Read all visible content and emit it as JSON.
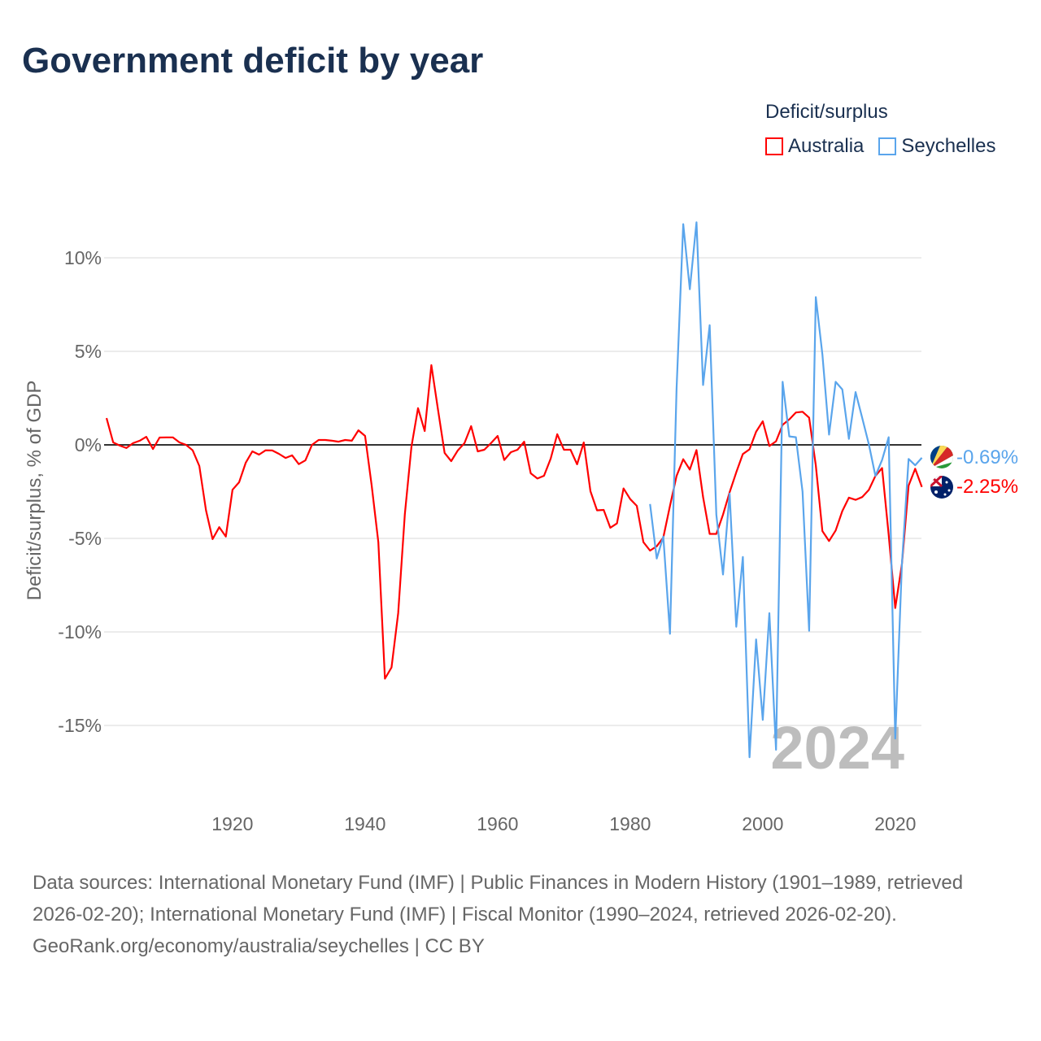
{
  "title": "Government deficit by year",
  "legend": {
    "title": "Deficit/surplus",
    "items": [
      {
        "label": "Australia",
        "color": "#ff0000"
      },
      {
        "label": "Seychelles",
        "color": "#5aa5ec"
      }
    ]
  },
  "watermark_year": "2024",
  "end_labels": {
    "Seychelles": "-0.69%",
    "Australia": "-2.25%"
  },
  "footer": {
    "sources": "Data sources: International Monetary Fund (IMF) | Public Finances in Modern History (1901–1989, retrieved 2026-02-20); International Monetary Fund (IMF) | Fiscal Monitor (1990–2024, retrieved 2026-02-20).",
    "credit": "GeoRank.org/economy/australia/seychelles | CC BY"
  },
  "chart_data": {
    "type": "line",
    "title": "Government deficit by year",
    "xlabel": "",
    "ylabel": "Deficit/surplus, % of GDP",
    "xlim": [
      1901,
      2024
    ],
    "ylim": [
      -18,
      13
    ],
    "x_ticks": [
      1920,
      1940,
      1960,
      1980,
      2000,
      2020
    ],
    "y_ticks": [
      {
        "v": 10,
        "label": "10%"
      },
      {
        "v": 5,
        "label": "5%"
      },
      {
        "v": 0,
        "label": "0%"
      },
      {
        "v": -5,
        "label": "-5%"
      },
      {
        "v": -10,
        "label": "-10%"
      },
      {
        "v": -15,
        "label": "-15%"
      }
    ],
    "grid": true,
    "legend_position": "top-right",
    "series": [
      {
        "name": "Australia",
        "color": "#ff0000",
        "start_year": 1901,
        "values": [
          1.43,
          0.13,
          -0.04,
          -0.17,
          0.09,
          0.22,
          0.43,
          -0.22,
          0.39,
          0.4,
          0.4,
          0.13,
          0.0,
          -0.29,
          -1.13,
          -3.5,
          -5.04,
          -4.4,
          -4.9,
          -2.4,
          -2.0,
          -0.96,
          -0.35,
          -0.52,
          -0.29,
          -0.3,
          -0.48,
          -0.7,
          -0.56,
          -1.03,
          -0.83,
          0.0,
          0.26,
          0.26,
          0.22,
          0.17,
          0.26,
          0.22,
          0.78,
          0.48,
          -2.17,
          -5.2,
          -12.5,
          -11.9,
          -9.0,
          -3.7,
          -0.1,
          1.96,
          0.74,
          4.26,
          1.9,
          -0.43,
          -0.87,
          -0.29,
          0.09,
          1.0,
          -0.35,
          -0.26,
          0.09,
          0.48,
          -0.81,
          -0.39,
          -0.26,
          0.17,
          -1.52,
          -1.8,
          -1.65,
          -0.74,
          0.57,
          -0.26,
          -0.26,
          -1.04,
          0.13,
          -2.48,
          -3.5,
          -3.48,
          -4.43,
          -4.2,
          -2.33,
          -2.9,
          -3.26,
          -5.2,
          -5.65,
          -5.42,
          -4.95,
          -3.26,
          -1.66,
          -0.77,
          -1.32,
          -0.28,
          -2.79,
          -4.76,
          -4.76,
          -3.73,
          -2.54,
          -1.47,
          -0.49,
          -0.24,
          0.7,
          1.26,
          -0.06,
          0.19,
          1.07,
          1.36,
          1.73,
          1.77,
          1.45,
          -1.09,
          -4.61,
          -5.14,
          -4.58,
          -3.54,
          -2.82,
          -2.94,
          -2.79,
          -2.41,
          -1.66,
          -1.24,
          -4.8,
          -8.72,
          -6.37,
          -2.18,
          -1.28,
          -2.25
        ]
      },
      {
        "name": "Seychelles",
        "color": "#5aa5ec",
        "start_year": 1983,
        "values": [
          -3.16,
          -6.08,
          -4.9,
          -10.1,
          3.0,
          11.8,
          8.32,
          11.9,
          3.2,
          6.4,
          -3.73,
          -6.93,
          -2.6,
          -9.72,
          -5.99,
          -16.7,
          -10.4,
          -14.7,
          -9.0,
          -16.3,
          3.37,
          0.45,
          0.41,
          -2.5,
          -9.94,
          7.9,
          4.84,
          0.55,
          3.37,
          2.96,
          0.32,
          2.82,
          1.45,
          0.04,
          -1.66,
          -0.81,
          0.41,
          -15.7,
          -6.37,
          -0.75,
          -1.09,
          -0.69
        ]
      }
    ]
  }
}
